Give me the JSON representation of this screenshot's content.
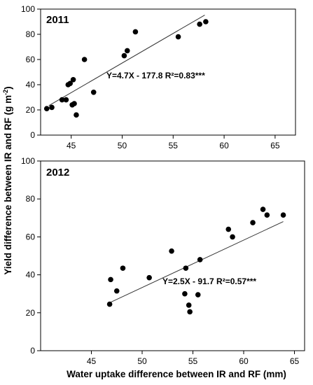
{
  "chart_data": [
    {
      "type": "scatter",
      "title": "2011",
      "annotation": "Y=4.7X - 177.8  R²=0.83***",
      "xlim": [
        42,
        67
      ],
      "ylim": [
        0,
        100
      ],
      "x_ticks": [
        45,
        50,
        55,
        60,
        65
      ],
      "y_ticks": [
        0,
        20,
        40,
        60,
        80,
        100
      ],
      "grid": false,
      "points": [
        {
          "x": 42.6,
          "y": 21
        },
        {
          "x": 43.1,
          "y": 22
        },
        {
          "x": 44.1,
          "y": 28
        },
        {
          "x": 44.5,
          "y": 28
        },
        {
          "x": 44.7,
          "y": 40
        },
        {
          "x": 44.9,
          "y": 41
        },
        {
          "x": 45.1,
          "y": 24
        },
        {
          "x": 45.3,
          "y": 25
        },
        {
          "x": 45.2,
          "y": 44
        },
        {
          "x": 45.5,
          "y": 16
        },
        {
          "x": 46.3,
          "y": 60
        },
        {
          "x": 47.2,
          "y": 34
        },
        {
          "x": 50.2,
          "y": 63
        },
        {
          "x": 50.5,
          "y": 67
        },
        {
          "x": 51.3,
          "y": 82
        },
        {
          "x": 55.5,
          "y": 78
        },
        {
          "x": 57.6,
          "y": 88
        },
        {
          "x": 58.2,
          "y": 90
        }
      ],
      "fit_line": {
        "x_start": 42.8,
        "x_end": 58.1
      }
    },
    {
      "type": "scatter",
      "title": "2012",
      "annotation": "Y=2.5X - 91.7  R²=0.57***",
      "xlim": [
        40,
        66
      ],
      "ylim": [
        0,
        100
      ],
      "x_ticks": [
        45,
        50,
        55,
        60,
        65
      ],
      "y_ticks": [
        0,
        20,
        40,
        60,
        80,
        100
      ],
      "grid": false,
      "points": [
        {
          "x": 46.8,
          "y": 24.5
        },
        {
          "x": 46.9,
          "y": 37.5
        },
        {
          "x": 47.5,
          "y": 31.5
        },
        {
          "x": 48.1,
          "y": 43.5
        },
        {
          "x": 50.7,
          "y": 38.5
        },
        {
          "x": 52.9,
          "y": 52.5
        },
        {
          "x": 54.2,
          "y": 30
        },
        {
          "x": 54.3,
          "y": 43.5
        },
        {
          "x": 54.6,
          "y": 24
        },
        {
          "x": 54.7,
          "y": 20.5
        },
        {
          "x": 55.5,
          "y": 29.5
        },
        {
          "x": 55.7,
          "y": 48
        },
        {
          "x": 58.5,
          "y": 64
        },
        {
          "x": 58.9,
          "y": 60
        },
        {
          "x": 60.9,
          "y": 67.5
        },
        {
          "x": 61.9,
          "y": 74.5
        },
        {
          "x": 62.3,
          "y": 71.5
        },
        {
          "x": 63.9,
          "y": 71.5
        }
      ],
      "fit_line": {
        "x_start": 46.8,
        "x_end": 63.9
      }
    }
  ],
  "ylabel_main": "Yield difference between IR and RF (g m",
  "ylabel_sup": "-2",
  "ylabel_end": ")",
  "xlabel": "Water uptake difference between IR and RF (mm)"
}
